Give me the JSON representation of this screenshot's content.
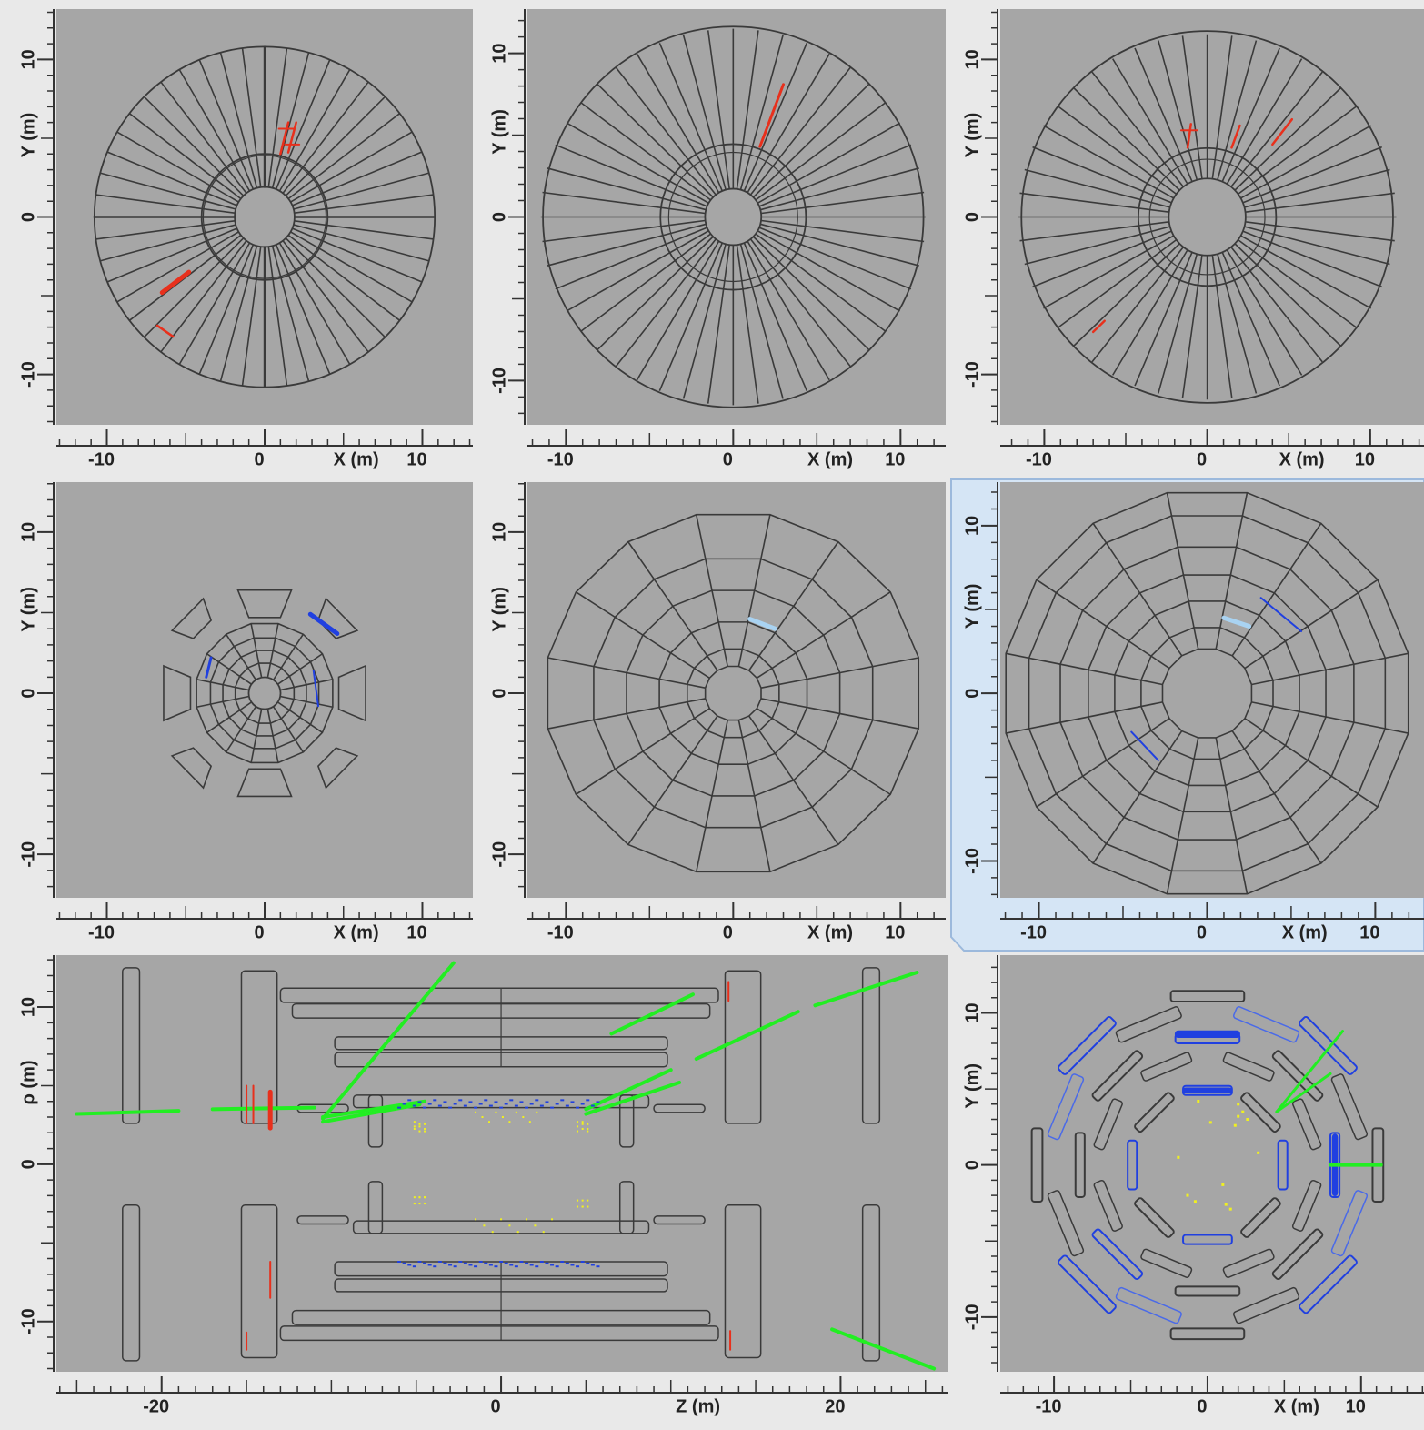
{
  "panels": [
    {
      "x_label": "X (m)",
      "y_label": "Y (m)",
      "xticks": [
        -10,
        0,
        10
      ],
      "yticks": [
        -10,
        0,
        10
      ],
      "xlim": [
        -13.2,
        13.2
      ],
      "ylim": [
        -13.2,
        13.2
      ]
    },
    {
      "x_label": "X (m)",
      "y_label": "Y (m)",
      "xticks": [
        -10,
        0,
        10
      ],
      "yticks": [
        -10,
        0,
        10
      ],
      "xlim": [
        -12.3,
        12.7
      ],
      "ylim": [
        -12.7,
        12.7
      ]
    },
    {
      "x_label": "X (m)",
      "y_label": "Y (m)",
      "xticks": [
        -10,
        0,
        10
      ],
      "yticks": [
        -10,
        0,
        10
      ],
      "xlim": [
        -12.7,
        13.3
      ],
      "ylim": [
        -13.2,
        13.2
      ]
    },
    {
      "x_label": "X (m)",
      "y_label": "Y (m)",
      "xticks": [
        -10,
        0,
        10
      ],
      "yticks": [
        -10,
        0,
        10
      ],
      "xlim": [
        -13.2,
        13.2
      ],
      "ylim": [
        -12.7,
        13.1
      ]
    },
    {
      "x_label": "X (m)",
      "y_label": "Y (m)",
      "xticks": [
        -10,
        0,
        10
      ],
      "yticks": [
        -10,
        0,
        10
      ],
      "xlim": [
        -12.3,
        12.7
      ],
      "ylim": [
        -12.7,
        13.1
      ]
    },
    {
      "x_label": "X (m)",
      "y_label": "Y (m)",
      "xticks": [
        -10,
        0,
        10
      ],
      "yticks": [
        -10,
        0,
        10
      ],
      "xlim": [
        -12.3,
        12.9
      ],
      "ylim": [
        -12.2,
        12.6
      ]
    },
    {
      "x_label": "Z (m)",
      "y_label": "ρ (m)",
      "xticks": [
        -20,
        0,
        20
      ],
      "yticks": [
        -10,
        0,
        10
      ],
      "xlim": [
        -26.2,
        26.3
      ],
      "ylim": [
        -13.2,
        13.3
      ]
    },
    {
      "x_label": "X (m)",
      "y_label": "Y (m)",
      "xticks": [
        -10,
        0,
        10
      ],
      "yticks": [
        -10,
        0,
        10
      ],
      "xlim": [
        -13.5,
        14.1
      ],
      "ylim": [
        -13.6,
        13.8
      ]
    }
  ]
}
